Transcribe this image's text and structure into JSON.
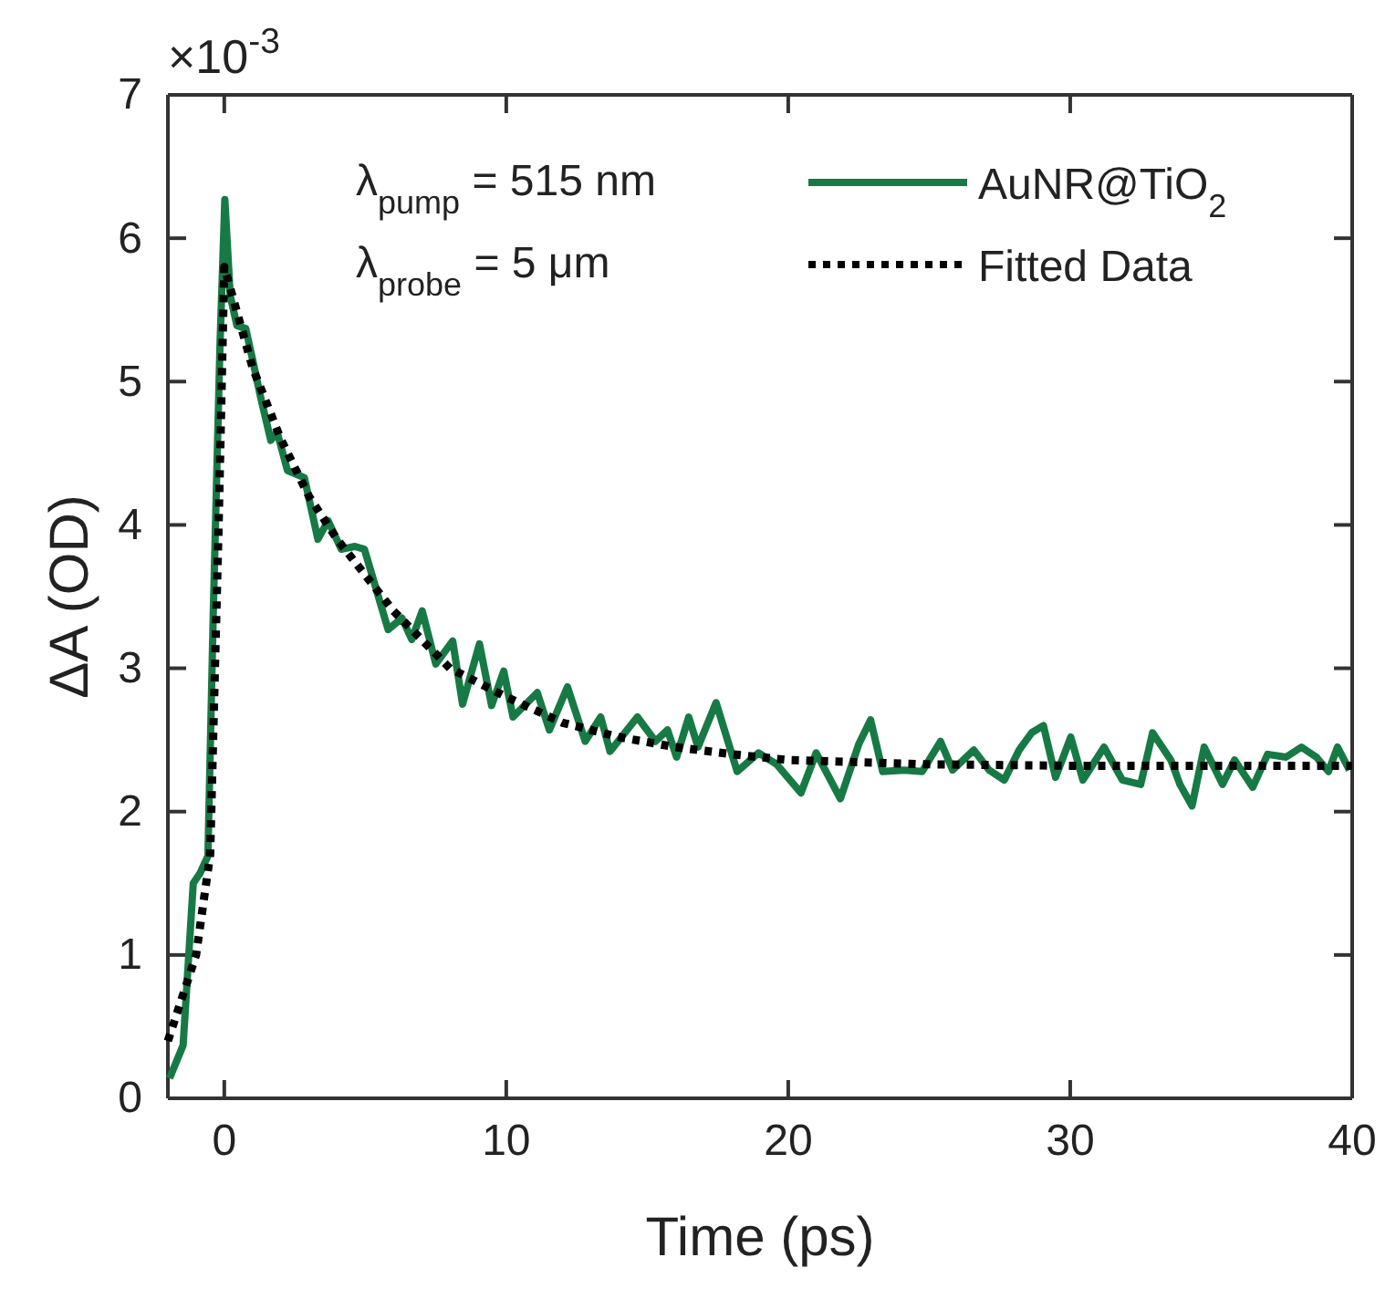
{
  "chart_data": {
    "type": "line",
    "xlabel": "Time (ps)",
    "ylabel": "ΔA (OD)",
    "xlim": [
      -2,
      40
    ],
    "xticks": [
      0,
      10,
      20,
      30,
      40
    ],
    "ylim": [
      0,
      7
    ],
    "yticks": [
      0,
      1,
      2,
      3,
      4,
      5,
      6,
      7
    ],
    "grid": false,
    "legend": "top right",
    "annotations": [
      "×10$^{-3}$",
      "λ$_{pump}$ = 515 nm",
      "λ$_{probe}$ = 5 μm"
    ],
    "series": [
      {
        "name": "AuNR@TiO$_{2}$",
        "color": "#177a45",
        "line_style": "solid",
        "x": [
          -1.94,
          -1.46,
          -1.1,
          -0.86,
          -0.58,
          -0.39,
          -0.15,
          0.02,
          0.21,
          0.45,
          0.76,
          1.03,
          1.29,
          1.65,
          1.87,
          2.24,
          2.84,
          3.32,
          3.68,
          4.15,
          4.63,
          4.97,
          5.36,
          5.81,
          6.3,
          6.65,
          7.02,
          7.5,
          8.1,
          8.45,
          9.05,
          9.48,
          9.91,
          10.24,
          11.1,
          11.53,
          12.17,
          12.8,
          13.35,
          13.68,
          14.65,
          15.29,
          15.72,
          16.04,
          16.47,
          16.8,
          17.44,
          18.19,
          18.95,
          19.59,
          20.45,
          20.99,
          21.85,
          22.5,
          22.92,
          23.35,
          24.1,
          24.75,
          25.4,
          25.83,
          26.58,
          27.12,
          27.66,
          28.19,
          28.63,
          29.05,
          29.48,
          30.02,
          30.45,
          31.2,
          31.85,
          32.5,
          32.92,
          33.57,
          33.89,
          34.32,
          34.75,
          35.4,
          35.83,
          36.47,
          37.0,
          37.65,
          38.2,
          38.73,
          39.16,
          39.48,
          39.9
        ],
        "values": [
          0.14,
          0.37,
          1.5,
          1.57,
          1.69,
          3.39,
          5.27,
          6.27,
          5.6,
          5.39,
          5.37,
          5.13,
          4.89,
          4.59,
          4.65,
          4.38,
          4.33,
          3.9,
          4.03,
          3.83,
          3.85,
          3.83,
          3.57,
          3.27,
          3.35,
          3.2,
          3.4,
          3.03,
          3.19,
          2.75,
          3.17,
          2.74,
          2.98,
          2.66,
          2.83,
          2.57,
          2.87,
          2.49,
          2.66,
          2.42,
          2.66,
          2.49,
          2.57,
          2.38,
          2.66,
          2.45,
          2.76,
          2.28,
          2.41,
          2.33,
          2.13,
          2.41,
          2.09,
          2.47,
          2.64,
          2.28,
          2.29,
          2.28,
          2.49,
          2.29,
          2.43,
          2.29,
          2.22,
          2.43,
          2.55,
          2.6,
          2.24,
          2.52,
          2.22,
          2.45,
          2.22,
          2.19,
          2.55,
          2.36,
          2.19,
          2.04,
          2.45,
          2.19,
          2.36,
          2.17,
          2.4,
          2.38,
          2.45,
          2.38,
          2.28,
          2.45,
          2.29
        ]
      },
      {
        "name": "Fitted Data",
        "color": "#000000",
        "line_style": "dotted",
        "x": [
          -2,
          -1,
          -0.5,
          -0.2,
          0,
          1,
          2,
          3,
          4,
          5,
          6,
          8,
          10,
          12,
          14,
          16,
          18,
          20,
          25,
          30,
          40
        ],
        "values": [
          0.4,
          1.0,
          1.7,
          4.0,
          5.8,
          5.1,
          4.6,
          4.2,
          3.9,
          3.65,
          3.4,
          3.0,
          2.8,
          2.62,
          2.52,
          2.45,
          2.4,
          2.36,
          2.33,
          2.32,
          2.32
        ]
      }
    ]
  }
}
